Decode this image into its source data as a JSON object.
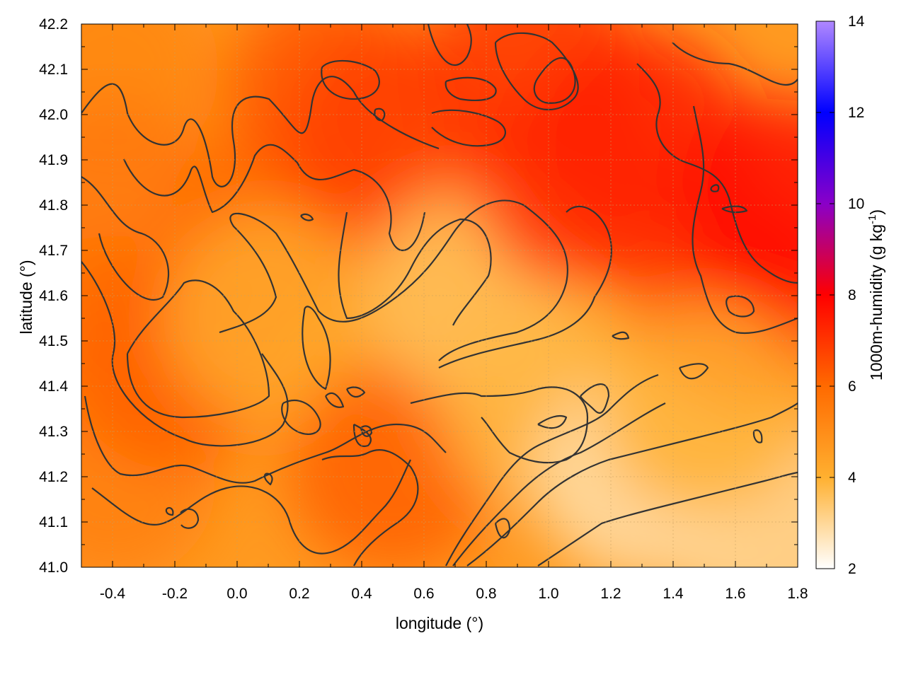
{
  "chart_data": {
    "type": "heatmap",
    "title": "",
    "xlabel": "longitude (°)",
    "ylabel": "latitude (°)",
    "xlim": [
      -0.5,
      1.8
    ],
    "ylim": [
      41.0,
      42.2
    ],
    "x_ticks": [
      "-0.4",
      "-0.2",
      "0.0",
      "0.2",
      "0.4",
      "0.6",
      "0.8",
      "1.0",
      "1.2",
      "1.4",
      "1.6",
      "1.8"
    ],
    "x_tick_values": [
      -0.4,
      -0.2,
      0.0,
      0.2,
      0.4,
      0.6,
      0.8,
      1.0,
      1.2,
      1.4,
      1.6,
      1.8
    ],
    "y_ticks": [
      "41.0",
      "41.1",
      "41.2",
      "41.3",
      "41.4",
      "41.5",
      "41.6",
      "41.7",
      "41.8",
      "41.9",
      "42.0",
      "42.1",
      "42.2"
    ],
    "y_tick_values": [
      41.0,
      41.1,
      41.2,
      41.3,
      41.4,
      41.5,
      41.6,
      41.7,
      41.8,
      41.9,
      42.0,
      42.1,
      42.2
    ],
    "grid": true,
    "contours": true,
    "colorbar": {
      "label": "1000m-humidity (g kg-1)",
      "label_main": "1000m-humidity (g kg",
      "label_sup": "-1",
      "label_end": ")",
      "range": [
        2,
        14
      ],
      "ticks": [
        "2",
        "4",
        "6",
        "8",
        "10",
        "12",
        "14"
      ],
      "tick_values": [
        2,
        4,
        6,
        8,
        10,
        12,
        14
      ],
      "color_stops": [
        {
          "value": 2,
          "color": "#ffffff"
        },
        {
          "value": 4,
          "color": "#ffb030"
        },
        {
          "value": 6,
          "color": "#ff6a00"
        },
        {
          "value": 8,
          "color": "#ff0000"
        },
        {
          "value": 10,
          "color": "#8a00c8"
        },
        {
          "value": 12,
          "color": "#0000ff"
        },
        {
          "value": 14,
          "color": "#b088ff"
        }
      ]
    },
    "field_samples": [
      {
        "lon": -0.4,
        "lat": 42.1,
        "q": 5.2
      },
      {
        "lon": -0.4,
        "lat": 41.8,
        "q": 5.6
      },
      {
        "lon": -0.4,
        "lat": 41.5,
        "q": 5.8
      },
      {
        "lon": -0.4,
        "lat": 41.2,
        "q": 5.4
      },
      {
        "lon": -0.2,
        "lat": 41.45,
        "q": 6.2
      },
      {
        "lon": 0.1,
        "lat": 41.75,
        "q": 6.0
      },
      {
        "lon": 0.1,
        "lat": 41.55,
        "q": 4.2
      },
      {
        "lon": 0.3,
        "lat": 42.05,
        "q": 6.4
      },
      {
        "lon": 0.5,
        "lat": 41.95,
        "q": 6.8
      },
      {
        "lon": 0.5,
        "lat": 41.22,
        "q": 6.2
      },
      {
        "lon": 0.75,
        "lat": 41.6,
        "q": 3.6
      },
      {
        "lon": 0.95,
        "lat": 42.1,
        "q": 7.0
      },
      {
        "lon": 1.0,
        "lat": 41.35,
        "q": 3.8
      },
      {
        "lon": 1.1,
        "lat": 41.85,
        "q": 7.2
      },
      {
        "lon": 1.3,
        "lat": 41.95,
        "q": 7.4
      },
      {
        "lon": 1.3,
        "lat": 41.2,
        "q": 2.8
      },
      {
        "lon": 1.6,
        "lat": 41.6,
        "q": 7.0
      },
      {
        "lon": 1.75,
        "lat": 41.8,
        "q": 7.8
      },
      {
        "lon": 1.7,
        "lat": 41.1,
        "q": 3.0
      },
      {
        "lon": 1.5,
        "lat": 41.35,
        "q": 4.0
      }
    ]
  }
}
